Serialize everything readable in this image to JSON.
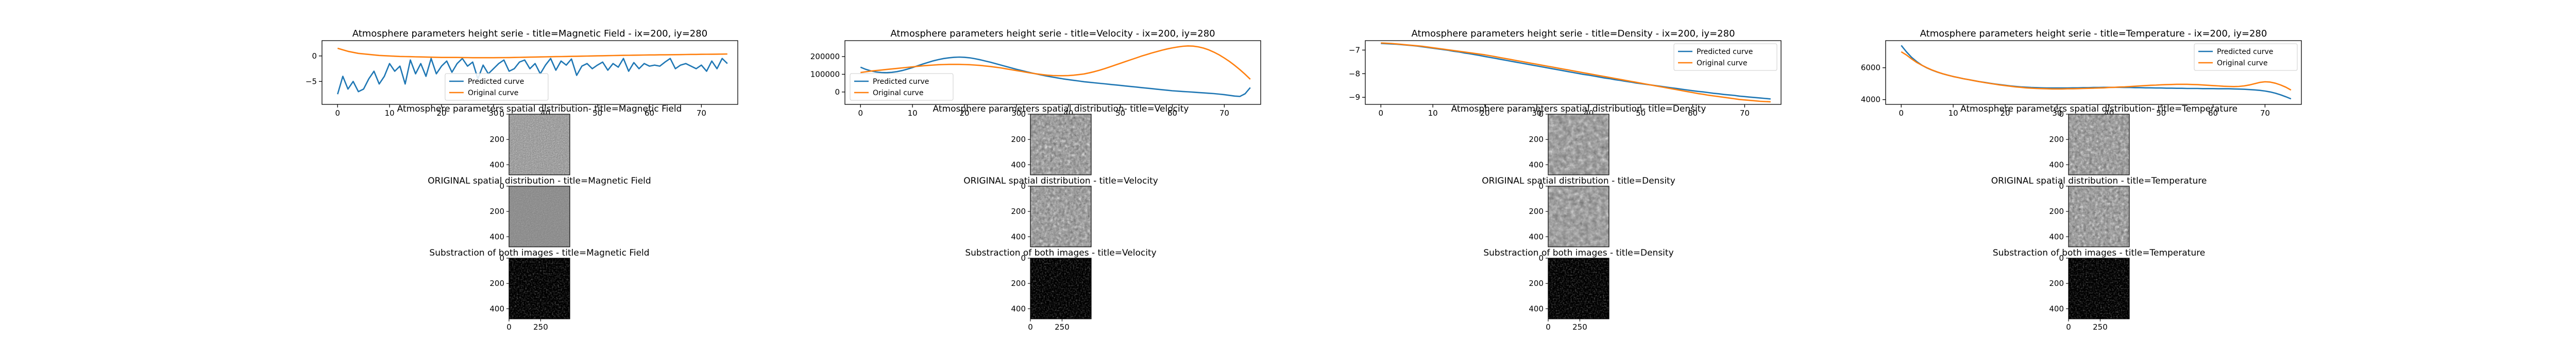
{
  "chart_data": [
    {
      "type": "line",
      "title": "Atmosphere parameters height serie - title=Magnetic Field - ix=200, iy=280",
      "xlim": [
        -3,
        77
      ],
      "ylim": [
        -9.5,
        3
      ],
      "xticks": [
        0,
        10,
        20,
        30,
        40,
        50,
        60,
        70
      ],
      "xtick_labels": [
        "0",
        "10",
        "20",
        "30",
        "40",
        "50",
        "60",
        "70"
      ],
      "yticks": [
        -5,
        0
      ],
      "ytick_labels": [
        "−5",
        "0"
      ],
      "legend_position": "lower-center",
      "series": [
        {
          "name": "Predicted curve",
          "color": "#1f77b4",
          "y": [
            -7.5,
            -4,
            -6.5,
            -5,
            -7,
            -6.5,
            -4.5,
            -3,
            -5.5,
            -4,
            -1.5,
            -3,
            -2,
            -5.5,
            -0.8,
            -3.5,
            -1.5,
            -4,
            -0.5,
            -3.5,
            -2,
            -1,
            -3.2,
            -1.5,
            -0.5,
            -2,
            -1.2,
            -4.5,
            -1.8,
            -3.5,
            -2.5,
            -1.5,
            -0.8,
            -3,
            -2.5,
            -1.2,
            -0.8,
            -2.5,
            -1.5,
            -3.5,
            -1.8,
            -0.5,
            -2.8,
            -1,
            -1.8,
            -0.6,
            -3.8,
            -2,
            -1.5,
            -2.5,
            -1.8,
            -1.2,
            -2.8,
            -1.5,
            -2.2,
            -0.5,
            -3,
            -1.3,
            -2.5,
            -1.5,
            -2,
            -1.8,
            -2,
            -1.2,
            -0.5,
            -2.5,
            -1.8,
            -1.5,
            -2,
            -2.5,
            -1.8,
            -3,
            -1,
            -2.5,
            -0.5,
            -1.5
          ]
        },
        {
          "name": "Original curve",
          "color": "#ff7f0e",
          "y": [
            1.5,
            1.2,
            0.9,
            0.7,
            0.5,
            0.4,
            0.3,
            0.2,
            0.1,
            0.05,
            0,
            -0.05,
            -0.1,
            -0.12,
            -0.15,
            -0.18,
            -0.2,
            -0.22,
            -0.25,
            -0.27,
            -0.3,
            -0.3,
            -0.3,
            -0.3,
            -0.32,
            -0.33,
            -0.35,
            -0.35,
            -0.35,
            -0.35,
            -0.35,
            -0.34,
            -0.33,
            -0.32,
            -0.3,
            -0.28,
            -0.26,
            -0.24,
            -0.22,
            -0.2,
            -0.18,
            -0.16,
            -0.14,
            -0.12,
            -0.1,
            -0.08,
            -0.06,
            -0.04,
            -0.02,
            0,
            0.02,
            0.04,
            0.06,
            0.08,
            0.1,
            0.12,
            0.13,
            0.15,
            0.16,
            0.18,
            0.2,
            0.2,
            0.22,
            0.22,
            0.24,
            0.25,
            0.26,
            0.28,
            0.3,
            0.3,
            0.32,
            0.33,
            0.34,
            0.35,
            0.36,
            0.38
          ]
        }
      ]
    },
    {
      "type": "line",
      "title": "Atmosphere parameters height serie - title=Velocity - ix=200, iy=280",
      "xlim": [
        -3,
        77
      ],
      "ylim": [
        -70000,
        290000
      ],
      "xticks": [
        0,
        10,
        20,
        30,
        40,
        50,
        60,
        70
      ],
      "xtick_labels": [
        "0",
        "10",
        "20",
        "30",
        "40",
        "50",
        "60",
        "70"
      ],
      "yticks": [
        0,
        100000,
        200000
      ],
      "ytick_labels": [
        "0",
        "100000",
        "200000"
      ],
      "legend_position": "lower-left",
      "series": [
        {
          "name": "Predicted curve",
          "color": "#1f77b4",
          "y": [
            140000,
            128000,
            119000,
            113000,
            110000,
            109000,
            111000,
            115000,
            121000,
            129000,
            138000,
            148000,
            158000,
            167000,
            176000,
            183000,
            189000,
            193000,
            196000,
            197000,
            196000,
            193000,
            188000,
            182000,
            175000,
            168000,
            160000,
            152000,
            144000,
            136000,
            128000,
            121000,
            114000,
            107000,
            101000,
            95000,
            89000,
            84000,
            79000,
            74000,
            70000,
            66000,
            62000,
            58000,
            55000,
            52000,
            49000,
            46000,
            43000,
            40000,
            37000,
            34000,
            31000,
            28000,
            25000,
            22000,
            19000,
            16000,
            13000,
            10000,
            7000,
            5000,
            3000,
            1000,
            -1000,
            -3000,
            -5000,
            -7000,
            -9000,
            -12000,
            -15000,
            -19000,
            -23000,
            -25000,
            -10000,
            25000
          ]
        },
        {
          "name": "Original curve",
          "color": "#ff7f0e",
          "y": [
            110000,
            114000,
            118000,
            121000,
            124000,
            127000,
            130000,
            133000,
            136000,
            139000,
            142000,
            145000,
            148000,
            150000,
            152000,
            154000,
            155000,
            156000,
            156000,
            156000,
            155000,
            154000,
            152000,
            150000,
            147000,
            144000,
            140000,
            136000,
            131000,
            126000,
            121000,
            116000,
            111000,
            106000,
            102000,
            98000,
            95000,
            93000,
            92000,
            92000,
            93000,
            95000,
            98000,
            102000,
            108000,
            115000,
            123000,
            132000,
            142000,
            152000,
            162000,
            172000,
            182000,
            192000,
            202000,
            211000,
            220000,
            228000,
            236000,
            243000,
            249000,
            254000,
            258000,
            260000,
            259000,
            255000,
            248000,
            238000,
            225000,
            210000,
            192000,
            172000,
            150000,
            126000,
            100000,
            72000
          ]
        }
      ]
    },
    {
      "type": "line",
      "title": "Atmosphere parameters height serie - title=Density - ix=200, iy=280",
      "xlim": [
        -3,
        77
      ],
      "ylim": [
        -9.3,
        -6.6
      ],
      "xticks": [
        0,
        10,
        20,
        30,
        40,
        50,
        60,
        70
      ],
      "xtick_labels": [
        "0",
        "10",
        "20",
        "30",
        "40",
        "50",
        "60",
        "70"
      ],
      "yticks": [
        -9,
        -8,
        -7
      ],
      "ytick_labels": [
        "−9",
        "−8",
        "−7"
      ],
      "legend_position": "upper-right",
      "series": [
        {
          "name": "Predicted curve",
          "color": "#1f77b4",
          "y": [
            -6.72,
            -6.73,
            -6.74,
            -6.75,
            -6.77,
            -6.79,
            -6.81,
            -6.83,
            -6.86,
            -6.89,
            -6.92,
            -6.95,
            -6.98,
            -7.01,
            -7.05,
            -7.08,
            -7.12,
            -7.15,
            -7.19,
            -7.23,
            -7.27,
            -7.31,
            -7.35,
            -7.39,
            -7.43,
            -7.47,
            -7.51,
            -7.55,
            -7.59,
            -7.63,
            -7.67,
            -7.71,
            -7.75,
            -7.79,
            -7.83,
            -7.87,
            -7.91,
            -7.95,
            -7.99,
            -8.03,
            -8.06,
            -8.1,
            -8.14,
            -8.18,
            -8.21,
            -8.25,
            -8.28,
            -8.32,
            -8.35,
            -8.39,
            -8.42,
            -8.45,
            -8.48,
            -8.51,
            -8.54,
            -8.57,
            -8.6,
            -8.63,
            -8.66,
            -8.69,
            -8.72,
            -8.75,
            -8.77,
            -8.8,
            -8.83,
            -8.85,
            -8.88,
            -8.9,
            -8.92,
            -8.95,
            -8.97,
            -8.99,
            -9.01,
            -9.03,
            -9.05,
            -9.07
          ]
        },
        {
          "name": "Original curve",
          "color": "#ff7f0e",
          "y": [
            -6.7,
            -6.71,
            -6.72,
            -6.74,
            -6.76,
            -6.78,
            -6.8,
            -6.82,
            -6.84,
            -6.87,
            -6.9,
            -6.93,
            -6.96,
            -6.99,
            -7.02,
            -7.05,
            -7.08,
            -7.11,
            -7.14,
            -7.17,
            -7.2,
            -7.24,
            -7.28,
            -7.32,
            -7.36,
            -7.4,
            -7.44,
            -7.48,
            -7.52,
            -7.56,
            -7.6,
            -7.64,
            -7.68,
            -7.72,
            -7.76,
            -7.8,
            -7.84,
            -7.88,
            -7.92,
            -7.96,
            -8,
            -8.04,
            -8.08,
            -8.12,
            -8.16,
            -8.2,
            -8.24,
            -8.28,
            -8.32,
            -8.36,
            -8.4,
            -8.44,
            -8.48,
            -8.52,
            -8.56,
            -8.6,
            -8.64,
            -8.68,
            -8.72,
            -8.76,
            -8.8,
            -8.84,
            -8.87,
            -8.91,
            -8.94,
            -8.97,
            -9,
            -9.03,
            -9.06,
            -9.09,
            -9.11,
            -9.13,
            -9.15,
            -9.17,
            -9.18,
            -9.19
          ]
        }
      ]
    },
    {
      "type": "line",
      "title": "Atmosphere parameters height serie - title=Temperature - ix=200, iy=280",
      "xlim": [
        -3,
        77
      ],
      "ylim": [
        3700,
        7700
      ],
      "xticks": [
        0,
        10,
        20,
        30,
        40,
        50,
        60,
        70
      ],
      "xtick_labels": [
        "0",
        "10",
        "20",
        "30",
        "40",
        "50",
        "60",
        "70"
      ],
      "yticks": [
        4000,
        6000
      ],
      "ytick_labels": [
        "4000",
        "6000"
      ],
      "legend_position": "upper-right",
      "series": [
        {
          "name": "Predicted curve",
          "color": "#1f77b4",
          "y": [
            7400,
            7000,
            6650,
            6380,
            6150,
            5980,
            5840,
            5720,
            5620,
            5530,
            5450,
            5380,
            5310,
            5250,
            5190,
            5130,
            5080,
            5030,
            4980,
            4940,
            4900,
            4860,
            4830,
            4800,
            4780,
            4760,
            4750,
            4740,
            4730,
            4730,
            4730,
            4730,
            4730,
            4740,
            4740,
            4750,
            4750,
            4760,
            4760,
            4770,
            4770,
            4770,
            4770,
            4760,
            4760,
            4750,
            4750,
            4740,
            4740,
            4730,
            4730,
            4720,
            4720,
            4710,
            4710,
            4700,
            4700,
            4700,
            4690,
            4690,
            4690,
            4680,
            4680,
            4680,
            4670,
            4660,
            4650,
            4630,
            4610,
            4580,
            4540,
            4480,
            4400,
            4300,
            4180,
            4050
          ]
        },
        {
          "name": "Original curve",
          "color": "#ff7f0e",
          "y": [
            7000,
            6800,
            6550,
            6330,
            6150,
            5990,
            5850,
            5730,
            5620,
            5530,
            5450,
            5380,
            5310,
            5250,
            5190,
            5130,
            5070,
            5020,
            4970,
            4920,
            4880,
            4840,
            4800,
            4770,
            4740,
            4720,
            4700,
            4690,
            4680,
            4670,
            4670,
            4670,
            4680,
            4680,
            4690,
            4700,
            4710,
            4720,
            4730,
            4740,
            4760,
            4770,
            4790,
            4800,
            4820,
            4840,
            4860,
            4880,
            4900,
            4910,
            4930,
            4940,
            4950,
            4960,
            4960,
            4960,
            4950,
            4940,
            4920,
            4900,
            4880,
            4860,
            4840,
            4830,
            4820,
            4830,
            4860,
            4920,
            5000,
            5080,
            5120,
            5100,
            5030,
            4920,
            4780,
            4600
          ]
        }
      ]
    }
  ],
  "image_panels": {
    "rows": [
      {
        "prefix": "Atmosphere parameters spatial distribution- title="
      },
      {
        "prefix": "ORIGINAL spatial distribution - title="
      },
      {
        "prefix": "Substraction of both images - title="
      }
    ],
    "params": [
      "Magnetic Field",
      "Velocity",
      "Density",
      "Temperature"
    ],
    "yticks": [
      0,
      200,
      400
    ],
    "ytick_labels": [
      "0",
      "200",
      "400"
    ],
    "xticks": [
      0,
      250
    ],
    "xtick_labels": [
      "0",
      "250"
    ],
    "extent": 480,
    "colormap": "gray"
  }
}
